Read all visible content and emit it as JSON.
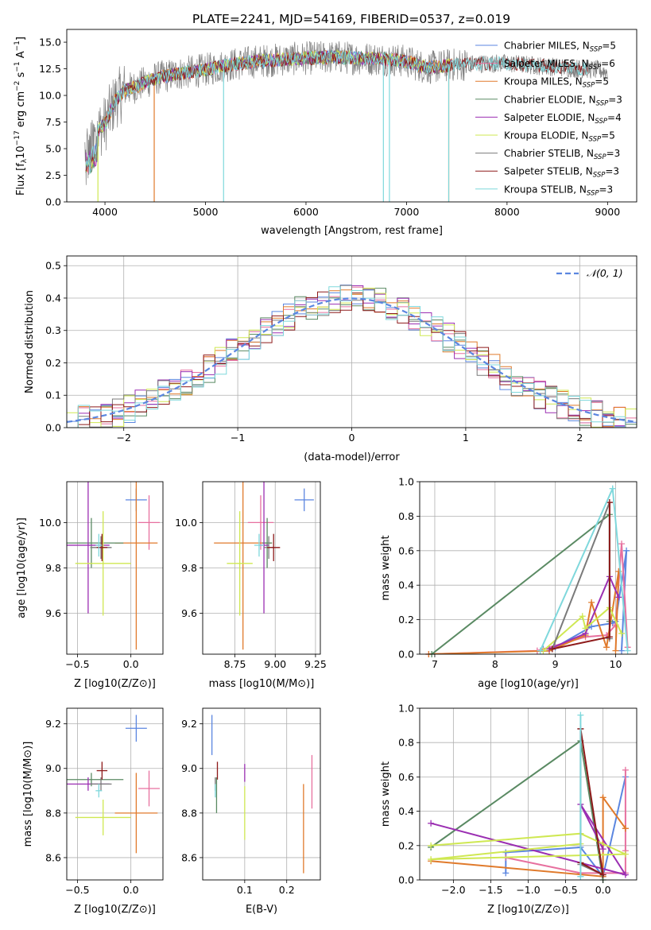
{
  "figure_title": "PLATE=2241, MJD=54169, FIBERID=0537, z=0.019",
  "colors": {
    "chabrier_miles": "#5b86e0",
    "salpeter_miles": "#e7709f",
    "kroupa_miles": "#e07a2b",
    "chabrier_elodie": "#5a8a63",
    "salpeter_elodie": "#9b2fb2",
    "kroupa_elodie": "#cfe852",
    "chabrier_stelib": "#7a7a7a",
    "salpeter_stelib": "#8e1a1a",
    "kroupa_stelib": "#7fd8dc",
    "data": "#808080",
    "grid": "#b0b0b0"
  },
  "chart_data": [
    {
      "id": "spectrum",
      "type": "line",
      "title": "PLATE=2241, MJD=54169, FIBERID=0537, z=0.019",
      "xlabel": "wavelength [Angstrom, rest frame]",
      "ylabel": "Flux [f_λ 10^-17 erg cm^-2 s^-1 A^-1]",
      "xlim": [
        3620,
        9290
      ],
      "ylim": [
        0,
        16.2
      ],
      "xticks": [
        4000,
        5000,
        6000,
        7000,
        8000,
        9000
      ],
      "yticks": [
        0.0,
        2.5,
        5.0,
        7.5,
        10.0,
        12.5,
        15.0
      ],
      "grid": false,
      "legend_position": "top-right",
      "legend": [
        {
          "label": "Chabrier MILES, N",
          "sub": "SSP",
          "suffix": "=5",
          "color": "#5b86e0"
        },
        {
          "label": "Salpeter MILES, N",
          "sub": "SSP",
          "suffix": "=6",
          "color": "#e7709f"
        },
        {
          "label": "Kroupa MILES, N",
          "sub": "SSP",
          "suffix": "=5",
          "color": "#e07a2b"
        },
        {
          "label": "Chabrier ELODIE, N",
          "sub": "SSP",
          "suffix": "=3",
          "color": "#5a8a63"
        },
        {
          "label": "Salpeter ELODIE, N",
          "sub": "SSP",
          "suffix": "=4",
          "color": "#9b2fb2"
        },
        {
          "label": "Kroupa ELODIE, N",
          "sub": "SSP",
          "suffix": "=5",
          "color": "#cfe852"
        },
        {
          "label": "Chabrier STELIB, N",
          "sub": "SSP",
          "suffix": "=3",
          "color": "#7a7a7a"
        },
        {
          "label": "Salpeter STELIB, N",
          "sub": "SSP",
          "suffix": "=3",
          "color": "#8e1a1a"
        },
        {
          "label": "Kroupa STELIB, N",
          "sub": "SSP",
          "suffix": "=3",
          "color": "#7fd8dc"
        }
      ],
      "continuum": {
        "wavelength": [
          3800,
          3900,
          4000,
          4100,
          4200,
          4300,
          4500,
          4700,
          5000,
          5200,
          5500,
          5800,
          6000,
          6300,
          6500,
          6800,
          7000,
          7200,
          7500,
          7800,
          8000,
          8300,
          8600,
          8900,
          9000
        ],
        "flux": [
          5.5,
          6.5,
          7.3,
          9.5,
          10.5,
          10.8,
          11.6,
          12.0,
          12.4,
          12.8,
          13.2,
          13.4,
          13.5,
          13.6,
          13.5,
          13.4,
          13.2,
          12.6,
          12.9,
          13.0,
          13.0,
          12.8,
          12.6,
          12.4,
          12.2
        ]
      }
    },
    {
      "id": "residuals",
      "type": "line",
      "xlabel": "(data-model)/error",
      "ylabel": "Normed distribution",
      "xlim": [
        -2.5,
        2.5
      ],
      "ylim": [
        0,
        0.53
      ],
      "xticks": [
        -2,
        -1,
        0,
        1,
        2
      ],
      "yticks": [
        0.0,
        0.1,
        0.2,
        0.3,
        0.4,
        0.5
      ],
      "grid": true,
      "legend_position": "top-right",
      "reference": {
        "label": "𝒩(0, 1)",
        "mean": 0,
        "sigma": 1,
        "color": "#5b86e0"
      },
      "bin_width": 0.1
    },
    {
      "id": "z_age",
      "type": "scatter",
      "xlabel": "Z [log10(Z/Z⊙)]",
      "ylabel": "age [log10(age/yr)]",
      "xlim": [
        -0.6,
        0.3
      ],
      "ylim": [
        9.42,
        10.18
      ],
      "xticks": [
        -0.5,
        0.0
      ],
      "yticks": [
        9.6,
        9.8,
        10.0
      ],
      "grid": true,
      "points": [
        {
          "x": 0.05,
          "xerr": 0.1,
          "y": 10.1,
          "yerr": 0.05,
          "color": "#5b86e0"
        },
        {
          "x": 0.17,
          "xerr": 0.1,
          "y": 10.0,
          "yerr": 0.12,
          "color": "#e7709f"
        },
        {
          "x": 0.05,
          "xerr": 0.2,
          "y": 9.91,
          "yerr": 0.47,
          "color": "#e07a2b"
        },
        {
          "x": -0.37,
          "xerr": 0.3,
          "y": 9.91,
          "yerr": 0.11,
          "color": "#5a8a63"
        },
        {
          "x": -0.4,
          "xerr": 0.2,
          "y": 9.9,
          "yerr": 0.3,
          "color": "#9b2fb2"
        },
        {
          "x": -0.26,
          "xerr": 0.26,
          "y": 9.82,
          "yerr": 0.23,
          "color": "#cfe852"
        },
        {
          "x": -0.28,
          "xerr": 0.1,
          "y": 9.89,
          "yerr": 0.05,
          "color": "#7a7a7a"
        },
        {
          "x": -0.27,
          "xerr": 0.05,
          "y": 9.89,
          "yerr": 0.06,
          "color": "#8e1a1a"
        },
        {
          "x": -0.3,
          "xerr": 0.03,
          "y": 9.9,
          "yerr": 0.05,
          "color": "#7fd8dc"
        }
      ]
    },
    {
      "id": "mass_age",
      "type": "scatter",
      "xlabel": "mass [log10(M/M⊙)]",
      "ylabel": "",
      "xlim": [
        8.55,
        9.28
      ],
      "ylim": [
        9.42,
        10.18
      ],
      "xticks": [
        8.75,
        9.0,
        9.25
      ],
      "yticks": [
        9.6,
        9.8,
        10.0
      ],
      "grid": true,
      "points": [
        {
          "x": 9.18,
          "xerr": 0.06,
          "y": 10.1,
          "yerr": 0.05,
          "color": "#5b86e0"
        },
        {
          "x": 8.91,
          "xerr": 0.08,
          "y": 10.0,
          "yerr": 0.12,
          "color": "#e7709f"
        },
        {
          "x": 8.8,
          "xerr": 0.18,
          "y": 9.91,
          "yerr": 0.47,
          "color": "#e07a2b"
        },
        {
          "x": 8.95,
          "xerr": 0.03,
          "y": 9.91,
          "yerr": 0.11,
          "color": "#5a8a63"
        },
        {
          "x": 8.93,
          "xerr": 0.03,
          "y": 9.9,
          "yerr": 0.3,
          "color": "#9b2fb2"
        },
        {
          "x": 8.78,
          "xerr": 0.08,
          "y": 9.82,
          "yerr": 0.23,
          "color": "#cfe852"
        },
        {
          "x": 8.96,
          "xerr": 0.03,
          "y": 9.89,
          "yerr": 0.05,
          "color": "#7a7a7a"
        },
        {
          "x": 8.99,
          "xerr": 0.04,
          "y": 9.89,
          "yerr": 0.06,
          "color": "#8e1a1a"
        },
        {
          "x": 8.9,
          "xerr": 0.03,
          "y": 9.9,
          "yerr": 0.05,
          "color": "#7fd8dc"
        }
      ]
    },
    {
      "id": "weights_age",
      "type": "line",
      "xlabel": "age [log10(age/yr)]",
      "ylabel": "mass weight",
      "xlim": [
        6.75,
        10.35
      ],
      "ylim": [
        0,
        1.0
      ],
      "xticks": [
        7,
        8,
        9,
        10
      ],
      "yticks": [
        0.0,
        0.2,
        0.4,
        0.6,
        0.8,
        1.0
      ],
      "grid": true,
      "series": [
        {
          "color": "#5b86e0",
          "x": [
            8.8,
            9.0,
            9.6,
            9.95,
            10.0,
            10.18,
            10.1
          ],
          "y": [
            0.03,
            0.04,
            0.16,
            0.18,
            0.19,
            0.6,
            0.02
          ]
        },
        {
          "color": "#e7709f",
          "x": [
            6.9,
            8.7,
            9.5,
            9.85,
            10.0,
            10.1,
            10.2
          ],
          "y": [
            0.0,
            0.02,
            0.1,
            0.11,
            0.17,
            0.64,
            0.04
          ]
        },
        {
          "color": "#e07a2b",
          "x": [
            6.9,
            8.9,
            9.5,
            9.6,
            9.85,
            10.05,
            10.0
          ],
          "y": [
            0.0,
            0.02,
            0.11,
            0.3,
            0.04,
            0.48,
            0.02
          ]
        },
        {
          "color": "#5a8a63",
          "x": [
            6.95,
            9.9,
            9.9
          ],
          "y": [
            0.0,
            0.81,
            0.19
          ]
        },
        {
          "color": "#9b2fb2",
          "x": [
            8.9,
            9.5,
            9.9,
            10.05
          ],
          "y": [
            0.03,
            0.12,
            0.45,
            0.33
          ]
        },
        {
          "color": "#cfe852",
          "x": [
            8.8,
            9.45,
            9.5,
            9.9,
            10.1
          ],
          "y": [
            0.02,
            0.22,
            0.15,
            0.27,
            0.12
          ]
        },
        {
          "color": "#7a7a7a",
          "x": [
            8.95,
            9.9,
            9.9
          ],
          "y": [
            0.03,
            0.88,
            0.09
          ]
        },
        {
          "color": "#8e1a1a",
          "x": [
            8.95,
            9.9,
            9.9
          ],
          "y": [
            0.03,
            0.1,
            0.88
          ]
        },
        {
          "color": "#7fd8dc",
          "x": [
            8.75,
            9.95,
            10.2
          ],
          "y": [
            0.02,
            0.96,
            0.02
          ]
        }
      ]
    },
    {
      "id": "z_mass",
      "type": "scatter",
      "xlabel": "Z [log10(Z/Z⊙)]",
      "ylabel": "mass [log10(M/M⊙)]",
      "xlim": [
        -0.6,
        0.3
      ],
      "ylim": [
        8.5,
        9.27
      ],
      "xticks": [
        -0.5,
        0.0
      ],
      "yticks": [
        8.6,
        8.8,
        9.0,
        9.2
      ],
      "grid": true,
      "points": [
        {
          "x": 0.05,
          "xerr": 0.1,
          "y": 9.18,
          "yerr": 0.06,
          "color": "#5b86e0"
        },
        {
          "x": 0.17,
          "xerr": 0.1,
          "y": 8.91,
          "yerr": 0.08,
          "color": "#e7709f"
        },
        {
          "x": 0.05,
          "xerr": 0.2,
          "y": 8.8,
          "yerr": 0.18,
          "color": "#e07a2b"
        },
        {
          "x": -0.37,
          "xerr": 0.3,
          "y": 8.95,
          "yerr": 0.03,
          "color": "#5a8a63"
        },
        {
          "x": -0.4,
          "xerr": 0.2,
          "y": 8.93,
          "yerr": 0.03,
          "color": "#9b2fb2"
        },
        {
          "x": -0.26,
          "xerr": 0.26,
          "y": 8.78,
          "yerr": 0.08,
          "color": "#cfe852"
        },
        {
          "x": -0.28,
          "xerr": 0.1,
          "y": 8.93,
          "yerr": 0.03,
          "color": "#7a7a7a"
        },
        {
          "x": -0.27,
          "xerr": 0.05,
          "y": 8.99,
          "yerr": 0.04,
          "color": "#8e1a1a"
        },
        {
          "x": -0.3,
          "xerr": 0.03,
          "y": 8.9,
          "yerr": 0.03,
          "color": "#7fd8dc"
        }
      ]
    },
    {
      "id": "ebv_mass",
      "type": "scatter",
      "xlabel": "E(B-V)",
      "ylabel": "",
      "xlim": [
        0.0,
        0.28
      ],
      "ylim": [
        8.5,
        9.27
      ],
      "xticks": [
        0.1,
        0.2
      ],
      "yticks": [
        8.6,
        8.8,
        9.0,
        9.2
      ],
      "grid": true,
      "points": [
        {
          "x": 0.022,
          "xerr": 0.0,
          "y": 9.15,
          "yerr": 0.09,
          "color": "#5b86e0"
        },
        {
          "x": 0.26,
          "xerr": 0.0,
          "y": 8.94,
          "yerr": 0.12,
          "color": "#e7709f"
        },
        {
          "x": 0.24,
          "xerr": 0.0,
          "y": 8.73,
          "yerr": 0.2,
          "color": "#e07a2b"
        },
        {
          "x": 0.033,
          "xerr": 0.0,
          "y": 8.88,
          "yerr": 0.08,
          "color": "#5a8a63"
        },
        {
          "x": 0.1,
          "xerr": 0.0,
          "y": 8.98,
          "yerr": 0.04,
          "color": "#9b2fb2"
        },
        {
          "x": 0.1,
          "xerr": 0.0,
          "y": 8.8,
          "yerr": 0.12,
          "color": "#cfe852"
        },
        {
          "x": 0.03,
          "xerr": 0.0,
          "y": 8.93,
          "yerr": 0.03,
          "color": "#7a7a7a"
        },
        {
          "x": 0.035,
          "xerr": 0.0,
          "y": 8.99,
          "yerr": 0.04,
          "color": "#8e1a1a"
        },
        {
          "x": 0.03,
          "xerr": 0.0,
          "y": 8.9,
          "yerr": 0.03,
          "color": "#7fd8dc"
        }
      ]
    },
    {
      "id": "weights_z",
      "type": "line",
      "xlabel": "Z [log10(Z/Z⊙)]",
      "ylabel": "mass weight",
      "xlim": [
        -2.45,
        0.45
      ],
      "ylim": [
        0,
        1.0
      ],
      "xticks": [
        -2.0,
        -1.5,
        -1.0,
        -0.5,
        0.0
      ],
      "yticks": [
        0.0,
        0.2,
        0.4,
        0.6,
        0.8,
        1.0
      ],
      "grid": true,
      "series": [
        {
          "color": "#5b86e0",
          "x": [
            -1.3,
            -1.3,
            -0.3,
            0.0,
            0.3
          ],
          "y": [
            0.04,
            0.16,
            0.19,
            0.02,
            0.6
          ]
        },
        {
          "color": "#e7709f",
          "x": [
            -1.3,
            -0.3,
            0.3,
            0.3,
            0.3
          ],
          "y": [
            0.13,
            0.04,
            0.04,
            0.64,
            0.17
          ]
        },
        {
          "color": "#e07a2b",
          "x": [
            -2.3,
            0.0,
            0.0,
            0.3,
            0.3
          ],
          "y": [
            0.11,
            0.02,
            0.48,
            0.3,
            0.3
          ]
        },
        {
          "color": "#5a8a63",
          "x": [
            -2.3,
            -0.3,
            0.0
          ],
          "y": [
            0.19,
            0.81,
            0.0
          ]
        },
        {
          "color": "#9b2fb2",
          "x": [
            -2.3,
            0.3,
            -0.3,
            0.0
          ],
          "y": [
            0.33,
            0.03,
            0.44,
            0.18
          ]
        },
        {
          "color": "#cfe852",
          "x": [
            -2.3,
            -0.3,
            0.3,
            -2.3,
            -0.3
          ],
          "y": [
            0.2,
            0.27,
            0.15,
            0.12,
            0.21
          ]
        },
        {
          "color": "#7a7a7a",
          "x": [
            -0.3,
            -0.3,
            0.0
          ],
          "y": [
            0.88,
            0.09,
            0.03
          ]
        },
        {
          "color": "#8e1a1a",
          "x": [
            -0.3,
            0.0,
            -0.3
          ],
          "y": [
            0.1,
            0.03,
            0.88
          ]
        },
        {
          "color": "#7fd8dc",
          "x": [
            -0.3,
            -0.3,
            -0.3
          ],
          "y": [
            0.96,
            0.02,
            0.02
          ]
        }
      ]
    }
  ]
}
